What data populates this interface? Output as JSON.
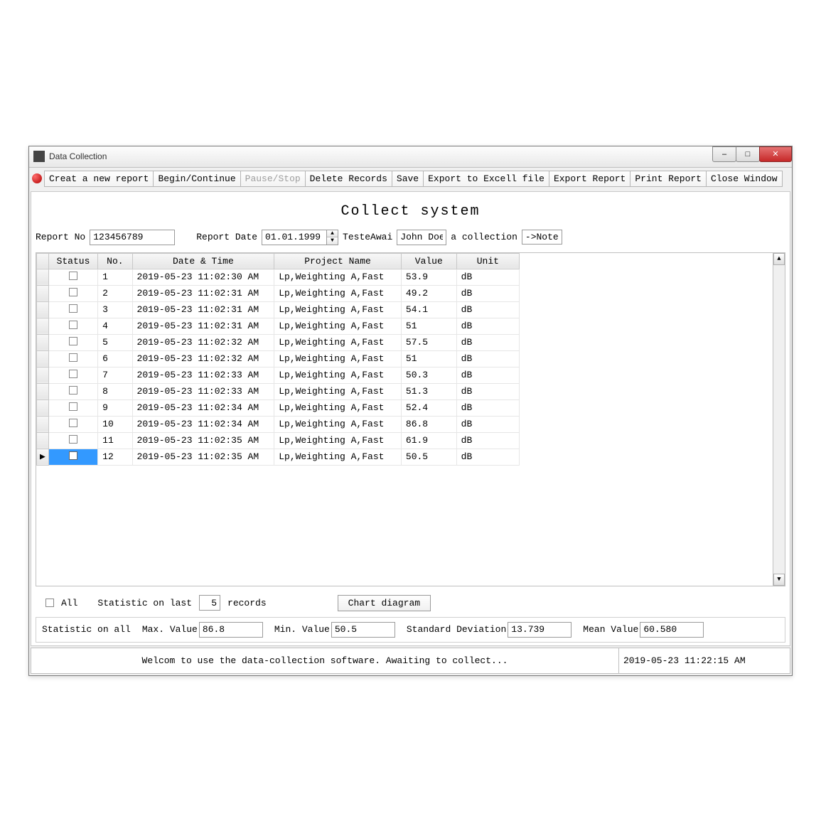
{
  "window": {
    "title": "Data Collection"
  },
  "toolbar": {
    "btn_create": "Creat a new report",
    "btn_begin": "Begin/Continue",
    "btn_pause": "Pause/Stop",
    "btn_delete": "Delete Records",
    "btn_save": "Save",
    "btn_export_excel": "Export to Excell file",
    "btn_export_report": "Export Report",
    "btn_print": "Print Report",
    "btn_close": "Close Window"
  },
  "page_title": "Collect system",
  "meta": {
    "report_no_label": "Report No",
    "report_no_value": "123456789",
    "report_date_label": "Report Date",
    "report_date_value": "01.01.1999",
    "tester_label": "TesteAwai",
    "tester_value": "John Doe",
    "collection_label": "a collection",
    "note_btn": "->Note"
  },
  "columns": {
    "status": "Status",
    "no": "No.",
    "datetime": "Date & Time",
    "project": "Project Name",
    "value": "Value",
    "unit": "Unit"
  },
  "rows": [
    {
      "no": "1",
      "dt": "2019-05-23 11:02:30 AM",
      "proj": "Lp,Weighting A,Fast",
      "val": "53.9",
      "unit": "dB",
      "sel": false
    },
    {
      "no": "2",
      "dt": "2019-05-23 11:02:31 AM",
      "proj": "Lp,Weighting A,Fast",
      "val": "49.2",
      "unit": "dB",
      "sel": false
    },
    {
      "no": "3",
      "dt": "2019-05-23 11:02:31 AM",
      "proj": "Lp,Weighting A,Fast",
      "val": "54.1",
      "unit": "dB",
      "sel": false
    },
    {
      "no": "4",
      "dt": "2019-05-23 11:02:31 AM",
      "proj": "Lp,Weighting A,Fast",
      "val": "51",
      "unit": "dB",
      "sel": false
    },
    {
      "no": "5",
      "dt": "2019-05-23 11:02:32 AM",
      "proj": "Lp,Weighting A,Fast",
      "val": "57.5",
      "unit": "dB",
      "sel": false
    },
    {
      "no": "6",
      "dt": "2019-05-23 11:02:32 AM",
      "proj": "Lp,Weighting A,Fast",
      "val": "51",
      "unit": "dB",
      "sel": false
    },
    {
      "no": "7",
      "dt": "2019-05-23 11:02:33 AM",
      "proj": "Lp,Weighting A,Fast",
      "val": "50.3",
      "unit": "dB",
      "sel": false
    },
    {
      "no": "8",
      "dt": "2019-05-23 11:02:33 AM",
      "proj": "Lp,Weighting A,Fast",
      "val": "51.3",
      "unit": "dB",
      "sel": false
    },
    {
      "no": "9",
      "dt": "2019-05-23 11:02:34 AM",
      "proj": "Lp,Weighting A,Fast",
      "val": "52.4",
      "unit": "dB",
      "sel": false
    },
    {
      "no": "10",
      "dt": "2019-05-23 11:02:34 AM",
      "proj": "Lp,Weighting A,Fast",
      "val": "86.8",
      "unit": "dB",
      "sel": false
    },
    {
      "no": "11",
      "dt": "2019-05-23 11:02:35 AM",
      "proj": "Lp,Weighting A,Fast",
      "val": "61.9",
      "unit": "dB",
      "sel": false
    },
    {
      "no": "12",
      "dt": "2019-05-23 11:02:35 AM",
      "proj": "Lp,Weighting A,Fast",
      "val": "50.5",
      "unit": "dB",
      "sel": true
    }
  ],
  "stats_top": {
    "all_label": "All",
    "stat_on_last_label": "Statistic on last",
    "stat_on_last_value": "5",
    "records_label": "records",
    "chart_btn": "Chart diagram"
  },
  "stats_bottom": {
    "stat_on_all_label": "Statistic on all",
    "max_label": "Max. Value",
    "max_value": "86.8",
    "min_label": "Min. Value",
    "min_value": "50.5",
    "std_label": "Standard Deviation",
    "std_value": "13.739",
    "mean_label": "Mean Value",
    "mean_value": "60.580"
  },
  "status": {
    "message": "Welcom to use the data-collection software. Awaiting to collect...",
    "clock": "2019-05-23 11:22:15 AM"
  },
  "colors": {
    "selection": "#3399ff",
    "close_btn": "#c62828",
    "window_bg": "#f0f0f0",
    "grid_header": "#ececec"
  }
}
